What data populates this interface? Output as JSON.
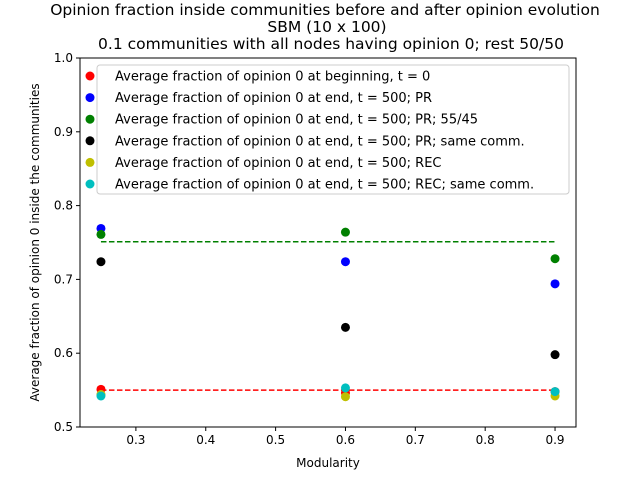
{
  "chart_data": {
    "type": "scatter",
    "title_lines": [
      "Opinion fraction inside communities before and after opinion evolution",
      "SBM (10 x 100)",
      "0.1 communities with all nodes having opinion 0; rest 50/50"
    ],
    "xlabel": "Modularity",
    "ylabel": "Average fraction of opinion 0 inside the communities",
    "xlim": [
      0.22,
      0.93
    ],
    "ylim": [
      0.5,
      1.0
    ],
    "xticks": [
      0.3,
      0.4,
      0.5,
      0.6,
      0.7,
      0.8,
      0.9
    ],
    "yticks": [
      0.5,
      0.6,
      0.7,
      0.8,
      0.9,
      1.0
    ],
    "legend_position": "top-right",
    "grid": false,
    "x": [
      0.25,
      0.6,
      0.9
    ],
    "series": [
      {
        "name": "Average fraction of opinion 0 at beginning, t = 0",
        "color": "#ff0000",
        "values": [
          0.551,
          0.546,
          0.548
        ]
      },
      {
        "name": "Average fraction of opinion 0 at end, t = 500; PR",
        "color": "#0000ff",
        "values": [
          0.769,
          0.724,
          0.694
        ]
      },
      {
        "name": "Average fraction of opinion 0 at end, t = 500; PR; 55/45",
        "color": "#008000",
        "values": [
          0.761,
          0.764,
          0.728
        ]
      },
      {
        "name": "Average fraction of opinion 0 at end, t = 500; PR; same comm.",
        "color": "#000000",
        "values": [
          0.724,
          0.635,
          0.598
        ]
      },
      {
        "name": "Average fraction of opinion 0 at end, t = 500; REC",
        "color": "#bfbf00",
        "values": [
          0.544,
          0.541,
          0.542
        ]
      },
      {
        "name": "Average fraction of opinion 0 at end, t = 500; REC; same comm.",
        "color": "#00bfbf",
        "values": [
          0.542,
          0.553,
          0.548
        ]
      }
    ],
    "reference_lines": [
      {
        "color": "#008000",
        "style": "dashed",
        "y": 0.751,
        "x": [
          0.25,
          0.9
        ]
      },
      {
        "color": "#ff0000",
        "style": "dashed",
        "y": 0.55,
        "x": [
          0.25,
          0.9
        ]
      }
    ]
  }
}
